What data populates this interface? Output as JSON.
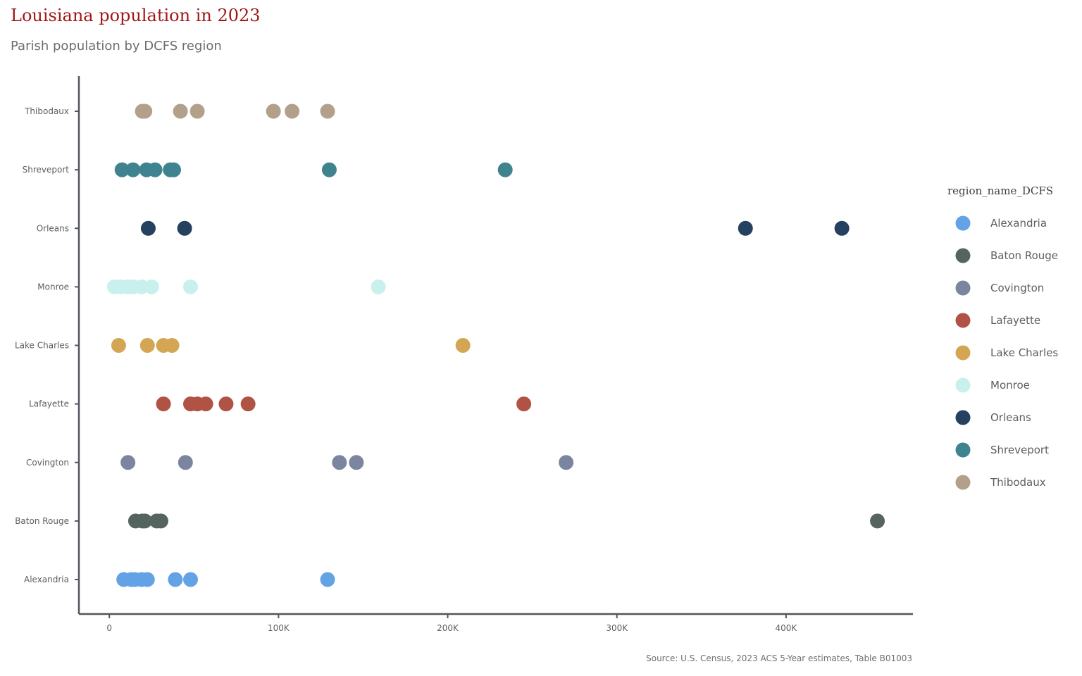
{
  "chart_data": {
    "type": "scatter",
    "title": "Louisiana population in 2023",
    "subtitle": "Parish population by DCFS region",
    "caption": "Source: U.S. Census, 2023 ACS 5-Year estimates, Table B01003",
    "xlabel": "",
    "ylabel": "",
    "xlim": [
      -18000,
      475000
    ],
    "x_ticks": [
      0,
      100000,
      200000,
      300000,
      400000
    ],
    "x_tick_labels": [
      "0",
      "100K",
      "200K",
      "300K",
      "400K"
    ],
    "categories": [
      "Alexandria",
      "Baton Rouge",
      "Covington",
      "Lafayette",
      "Lake Charles",
      "Monroe",
      "Orleans",
      "Shreveport",
      "Thibodaux"
    ],
    "grid": false,
    "legend_position": "right",
    "legend_title": "region_name_DCFS",
    "series": [
      {
        "name": "Alexandria",
        "color": "#64a2e6",
        "values": [
          8500,
          13000,
          15000,
          19000,
          22500,
          39000,
          48000,
          129000
        ]
      },
      {
        "name": "Baton Rouge",
        "color": "#55645f",
        "values": [
          15500,
          19500,
          21000,
          28000,
          30500,
          454000
        ]
      },
      {
        "name": "Covington",
        "color": "#7b859f",
        "values": [
          11000,
          45000,
          136000,
          146000,
          270000
        ]
      },
      {
        "name": "Lafayette",
        "color": "#b05244",
        "values": [
          32000,
          48000,
          52000,
          57000,
          69000,
          82000,
          245000
        ]
      },
      {
        "name": "Lake Charles",
        "color": "#d4a653",
        "values": [
          5500,
          22500,
          32000,
          37000,
          209000
        ]
      },
      {
        "name": "Monroe",
        "color": "#c8f0ed",
        "values": [
          3000,
          7000,
          11000,
          14000,
          19000,
          25000,
          48000,
          159000
        ]
      },
      {
        "name": "Orleans",
        "color": "#26405f",
        "values": [
          23000,
          44500,
          376000,
          433000
        ]
      },
      {
        "name": "Shreveport",
        "color": "#3f8290",
        "values": [
          7500,
          14000,
          22000,
          27000,
          36000,
          38000,
          130000,
          234000
        ]
      },
      {
        "name": "Thibodaux",
        "color": "#b3a08b",
        "values": [
          19500,
          21000,
          42000,
          52000,
          97000,
          108000,
          129000
        ]
      }
    ]
  }
}
